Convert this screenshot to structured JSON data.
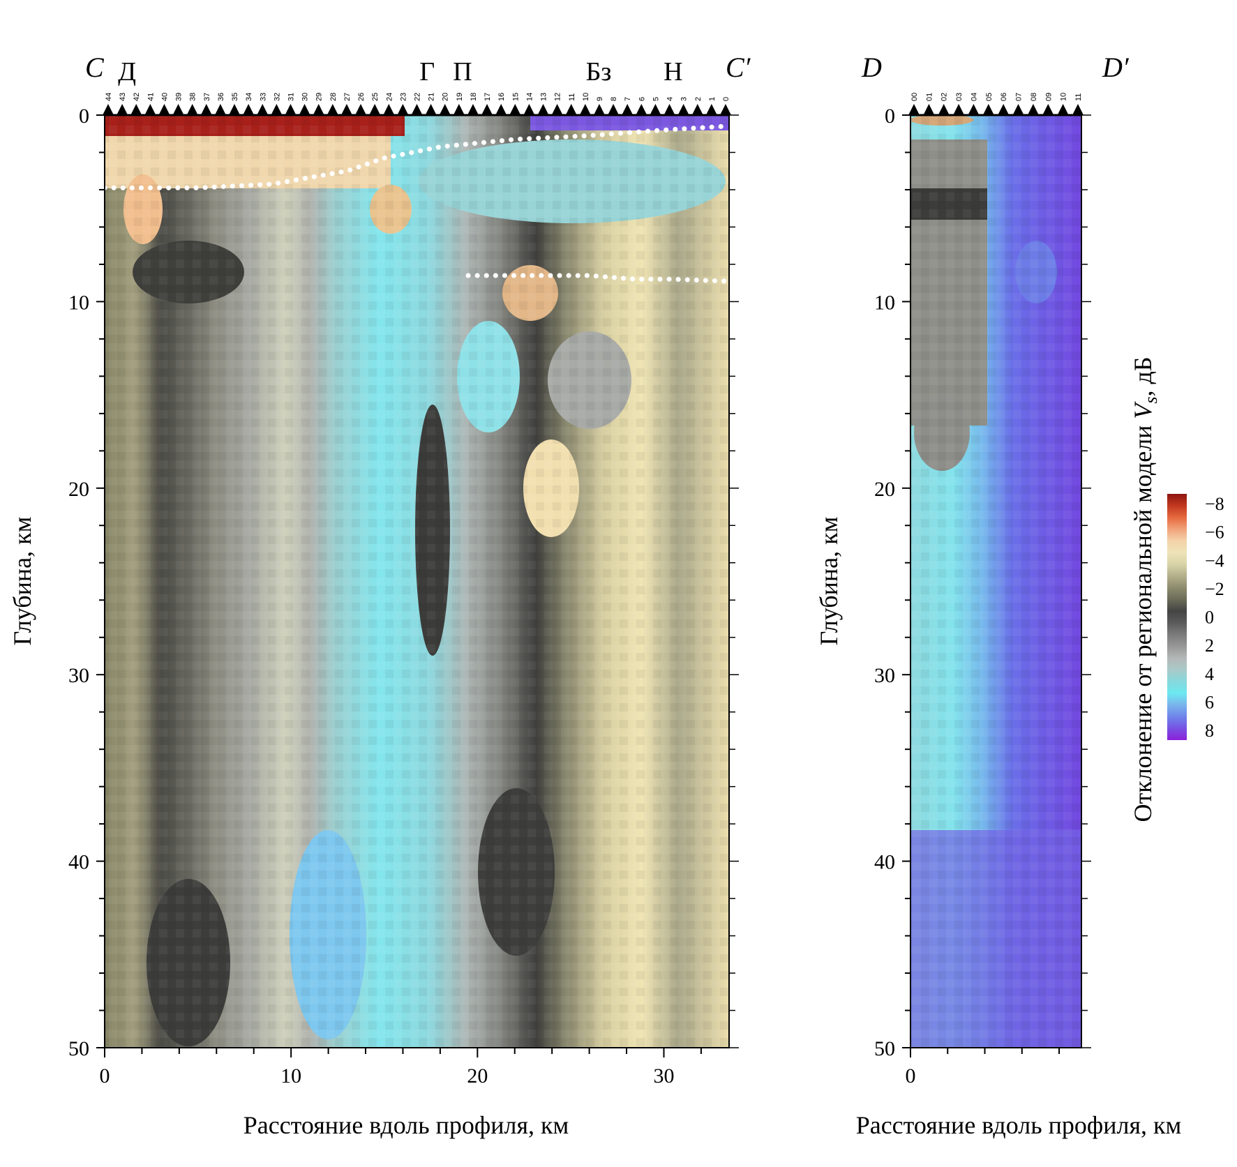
{
  "chart_data": [
    {
      "type": "heatmap",
      "profile": {
        "start": "C",
        "end": "C′"
      },
      "xlabel": "Расстояние вдоль профиля, км",
      "ylabel": "Глубина, км",
      "xlim": [
        0,
        33.5
      ],
      "ylim": [
        0,
        50
      ],
      "xticks": [
        0,
        10,
        20,
        30
      ],
      "yticks": [
        0,
        10,
        20,
        30,
        40,
        50
      ],
      "stations": [
        "44",
        "43",
        "42",
        "41",
        "40",
        "39",
        "38",
        "37",
        "36",
        "35",
        "34",
        "33",
        "32",
        "31",
        "30",
        "29",
        "28",
        "27",
        "26",
        "25",
        "24",
        "23",
        "22",
        "21",
        "20",
        "19",
        "18",
        "17",
        "16",
        "15",
        "14",
        "13",
        "12",
        "11",
        "10",
        "9",
        "8",
        "7",
        "6",
        "5",
        "4",
        "3",
        "2",
        "1",
        "0"
      ],
      "sites": [
        {
          "label": "Д",
          "x": 1.2
        },
        {
          "label": "Г",
          "x": 17.3
        },
        {
          "label": "П",
          "x": 19.2
        },
        {
          "label": "Бз",
          "x": 26.5
        },
        {
          "label": "Н",
          "x": 30.5
        }
      ],
      "boundaries": [
        {
          "x": [
            0,
            5,
            9,
            13,
            15,
            18,
            22,
            26,
            30,
            33.3
          ],
          "y": [
            3.9,
            3.9,
            3.7,
            3.0,
            2.3,
            1.7,
            1.3,
            1.1,
            0.8,
            0.6
          ]
        },
        {
          "x": [
            19.5,
            23,
            26,
            28.5,
            30.5,
            33.3
          ],
          "y": [
            8.6,
            8.6,
            8.6,
            8.8,
            8.8,
            8.9
          ]
        }
      ]
    },
    {
      "type": "heatmap",
      "profile": {
        "start": "D",
        "end": "D′"
      },
      "xlabel": "Расстояние вдоль профиля, км",
      "ylabel": "Глубина, км",
      "xlim": [
        0,
        9.2
      ],
      "ylim": [
        0,
        50
      ],
      "xticks": [
        0
      ],
      "yticks": [
        0,
        10,
        20,
        30,
        40,
        50
      ],
      "stations": [
        "00",
        "01",
        "02",
        "03",
        "04",
        "05",
        "06",
        "07",
        "08",
        "09",
        "10",
        "11"
      ]
    }
  ],
  "colorbar": {
    "title_prefix": "Отклонение от региональной модели ",
    "title_var": "V",
    "title_sub": "s",
    "title_suffix": ", дБ",
    "ticks": [
      "−8",
      "−6",
      "−4",
      "−2",
      "0",
      "2",
      "4",
      "6",
      "8"
    ],
    "colors": [
      "#8e1410",
      "#c2391f",
      "#e5683e",
      "#f1a27a",
      "#f4d2a9",
      "#efe3b8",
      "#d8d4a8",
      "#b3b08b",
      "#8d8b6e",
      "#6b6b58",
      "#444444",
      "#5b5b5b",
      "#7b7b7b",
      "#979797",
      "#b4b7b7",
      "#a9cac8",
      "#86d8dc",
      "#6ce8f0",
      "#7ab4ec",
      "#6f84ea",
      "#7752e4",
      "#8c1fd8"
    ]
  }
}
